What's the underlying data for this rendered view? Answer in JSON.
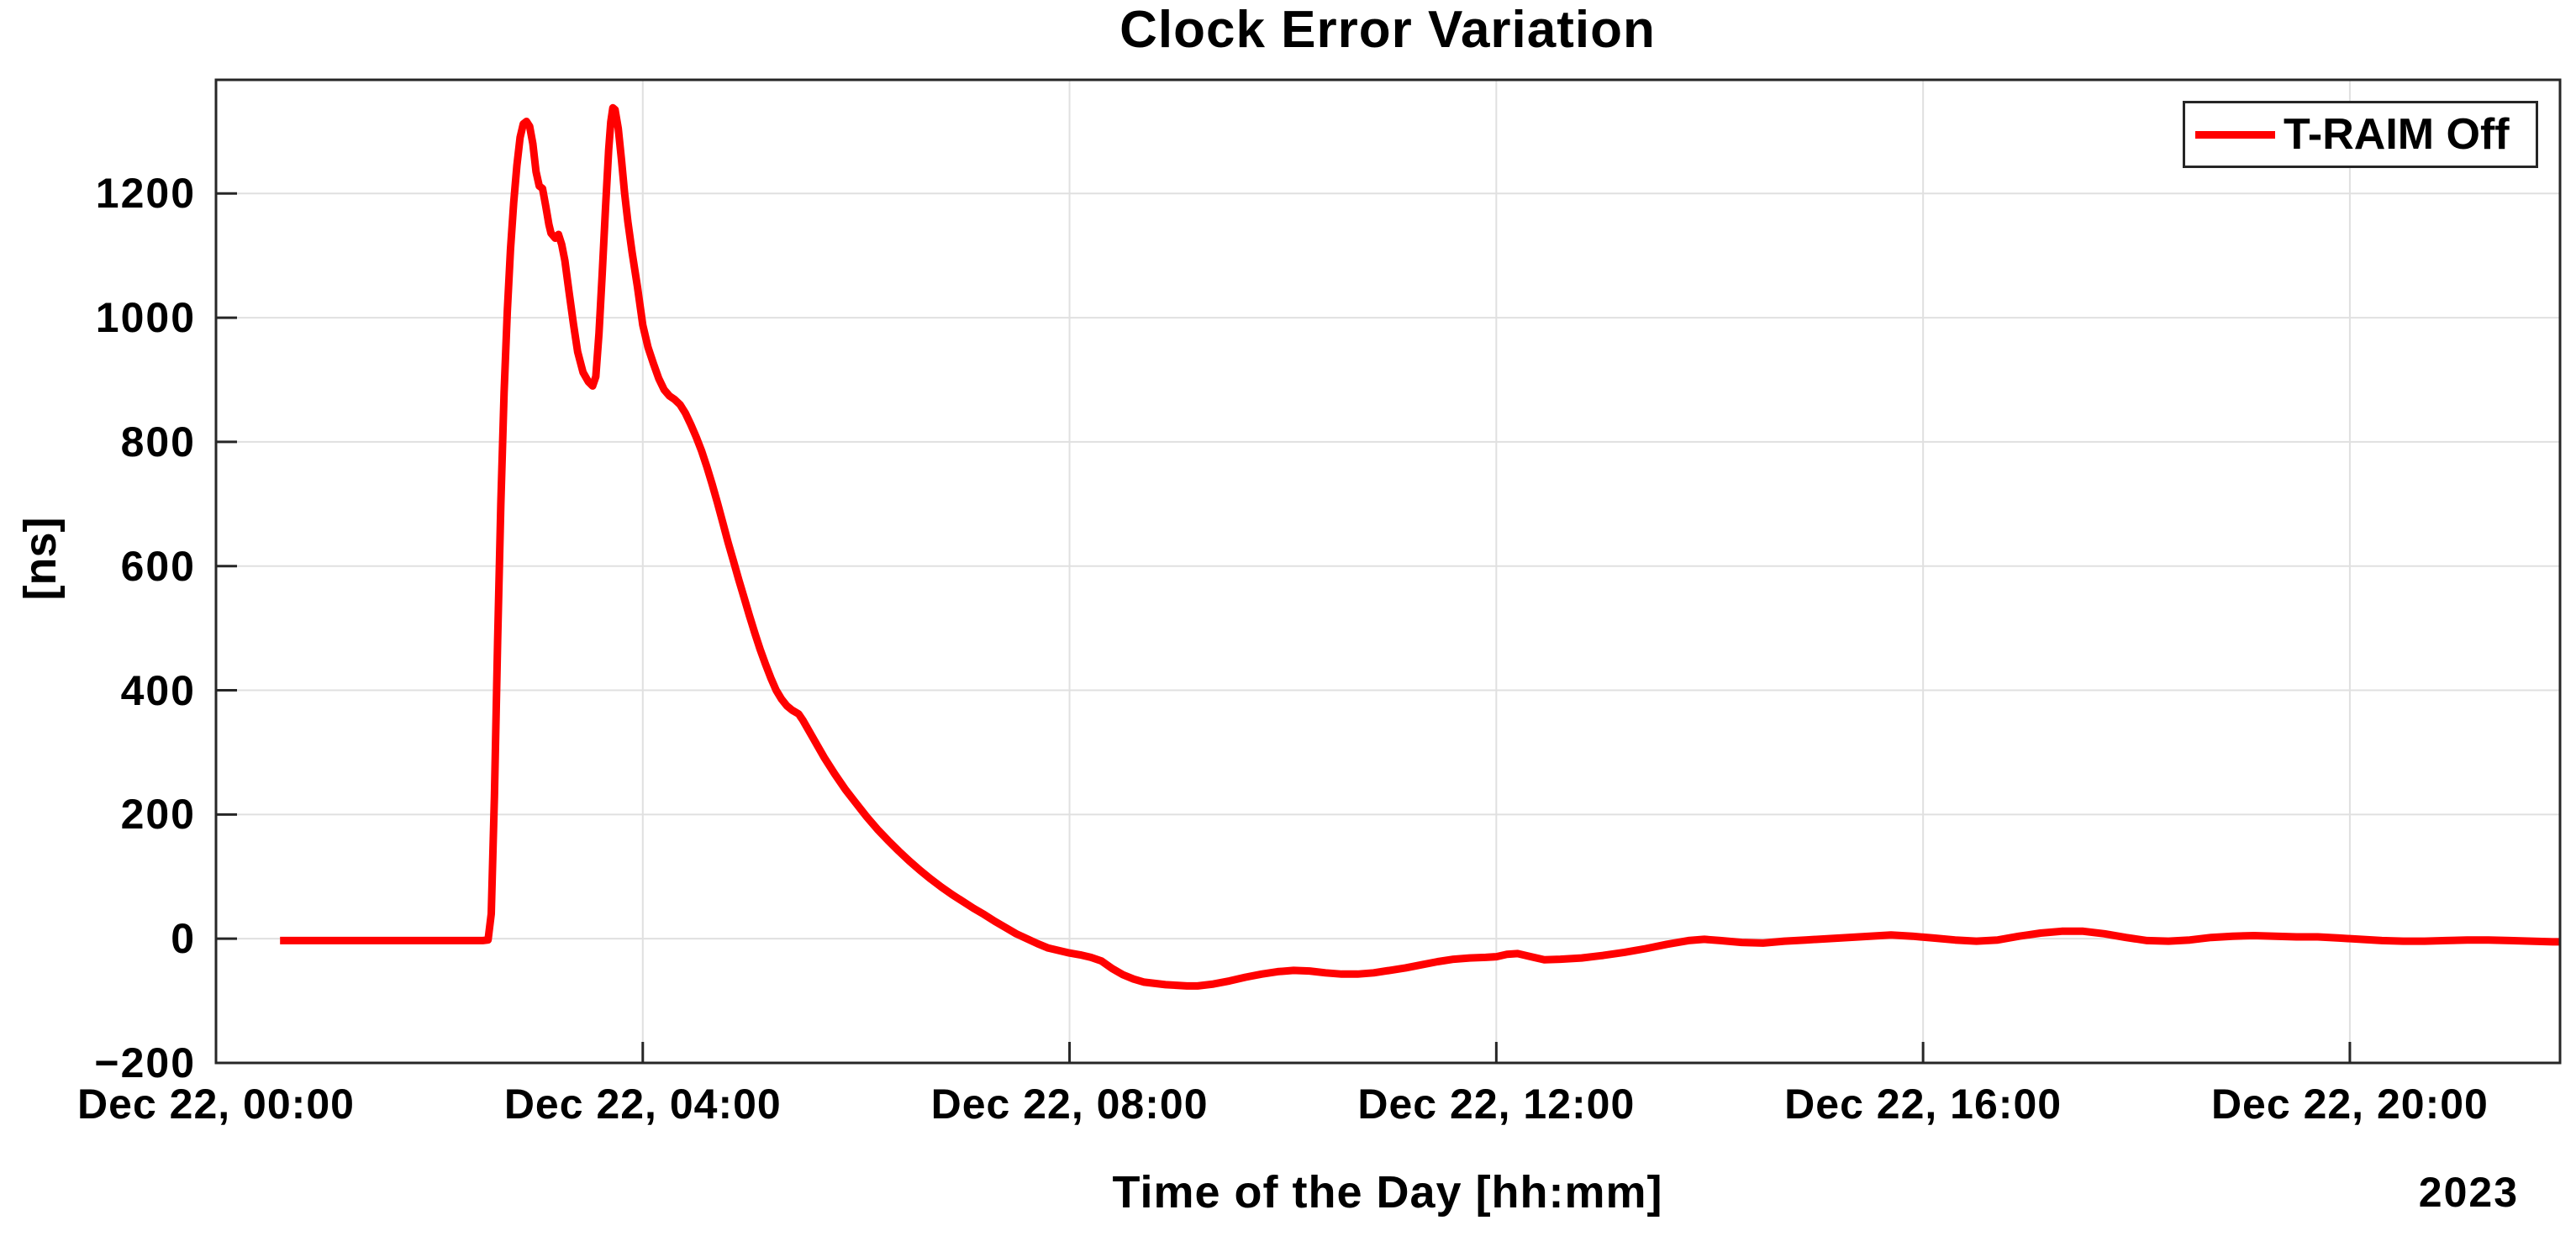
{
  "chart_data": {
    "type": "line",
    "title": "Clock Error Variation",
    "xlabel": "Time of the Day [hh:mm]",
    "ylabel": "[ns]",
    "x_secondary_label": "2023",
    "grid": true,
    "background_color": "#ffffff",
    "axis_color": "#262626",
    "grid_color": "#e0e0e0",
    "xlim_hours": [
      0,
      21.97
    ],
    "ylim": [
      -200,
      1383
    ],
    "x_ticks": [
      {
        "hours": 0,
        "label": "Dec 22, 00:00"
      },
      {
        "hours": 4,
        "label": "Dec 22, 04:00"
      },
      {
        "hours": 8,
        "label": "Dec 22, 08:00"
      },
      {
        "hours": 12,
        "label": "Dec 22, 12:00"
      },
      {
        "hours": 16,
        "label": "Dec 22, 16:00"
      },
      {
        "hours": 20,
        "label": "Dec 22, 20:00"
      }
    ],
    "y_ticks": [
      {
        "value": -200,
        "label": "−200"
      },
      {
        "value": 0,
        "label": "0"
      },
      {
        "value": 200,
        "label": "200"
      },
      {
        "value": 400,
        "label": "400"
      },
      {
        "value": 600,
        "label": "600"
      },
      {
        "value": 800,
        "label": "800"
      },
      {
        "value": 1000,
        "label": "1000"
      },
      {
        "value": 1200,
        "label": "1200"
      }
    ],
    "legend": {
      "position": "top-right",
      "entries": [
        {
          "label": "T-RAIM Off",
          "color": "#FF0000"
        }
      ]
    },
    "series": [
      {
        "name": "T-RAIM Off",
        "color": "#FF0000",
        "line_width": 9,
        "points": [
          [
            0.6,
            -3
          ],
          [
            0.8,
            -3
          ],
          [
            1.0,
            -3
          ],
          [
            1.2,
            -3
          ],
          [
            1.4,
            -3
          ],
          [
            1.6,
            -3
          ],
          [
            1.8,
            -3
          ],
          [
            2.0,
            -3
          ],
          [
            2.2,
            -3
          ],
          [
            2.4,
            -3
          ],
          [
            2.5,
            -3
          ],
          [
            2.55,
            -2
          ],
          [
            2.58,
            40
          ],
          [
            2.61,
            230
          ],
          [
            2.64,
            480
          ],
          [
            2.67,
            700
          ],
          [
            2.7,
            880
          ],
          [
            2.73,
            1010
          ],
          [
            2.76,
            1110
          ],
          [
            2.79,
            1185
          ],
          [
            2.82,
            1245
          ],
          [
            2.85,
            1290
          ],
          [
            2.88,
            1312
          ],
          [
            2.91,
            1316
          ],
          [
            2.94,
            1308
          ],
          [
            2.97,
            1280
          ],
          [
            3.0,
            1235
          ],
          [
            3.03,
            1212
          ],
          [
            3.06,
            1208
          ],
          [
            3.09,
            1180
          ],
          [
            3.12,
            1150
          ],
          [
            3.14,
            1136
          ],
          [
            3.18,
            1128
          ],
          [
            3.21,
            1134
          ],
          [
            3.24,
            1118
          ],
          [
            3.27,
            1092
          ],
          [
            3.31,
            1040
          ],
          [
            3.35,
            990
          ],
          [
            3.39,
            945
          ],
          [
            3.44,
            912
          ],
          [
            3.49,
            897
          ],
          [
            3.53,
            890
          ],
          [
            3.56,
            905
          ],
          [
            3.59,
            975
          ],
          [
            3.62,
            1070
          ],
          [
            3.65,
            1175
          ],
          [
            3.68,
            1270
          ],
          [
            3.7,
            1315
          ],
          [
            3.72,
            1338
          ],
          [
            3.74,
            1335
          ],
          [
            3.77,
            1305
          ],
          [
            3.8,
            1255
          ],
          [
            3.83,
            1200
          ],
          [
            3.86,
            1155
          ],
          [
            3.9,
            1105
          ],
          [
            3.95,
            1050
          ],
          [
            4.0,
            988
          ],
          [
            4.05,
            952
          ],
          [
            4.1,
            926
          ],
          [
            4.15,
            902
          ],
          [
            4.2,
            884
          ],
          [
            4.25,
            874
          ],
          [
            4.3,
            868
          ],
          [
            4.35,
            860
          ],
          [
            4.4,
            846
          ],
          [
            4.45,
            828
          ],
          [
            4.5,
            808
          ],
          [
            4.55,
            786
          ],
          [
            4.6,
            760
          ],
          [
            4.65,
            732
          ],
          [
            4.7,
            702
          ],
          [
            4.75,
            670
          ],
          [
            4.8,
            638
          ],
          [
            4.85,
            608
          ],
          [
            4.9,
            578
          ],
          [
            4.95,
            549
          ],
          [
            5.0,
            520
          ],
          [
            5.05,
            492
          ],
          [
            5.1,
            466
          ],
          [
            5.15,
            442
          ],
          [
            5.2,
            420
          ],
          [
            5.25,
            400
          ],
          [
            5.3,
            386
          ],
          [
            5.35,
            375
          ],
          [
            5.4,
            368
          ],
          [
            5.46,
            362
          ],
          [
            5.5,
            352
          ],
          [
            5.6,
            322
          ],
          [
            5.7,
            292
          ],
          [
            5.8,
            265
          ],
          [
            5.9,
            240
          ],
          [
            6.0,
            218
          ],
          [
            6.1,
            196
          ],
          [
            6.2,
            176
          ],
          [
            6.3,
            158
          ],
          [
            6.4,
            141
          ],
          [
            6.5,
            125
          ],
          [
            6.6,
            110
          ],
          [
            6.7,
            96
          ],
          [
            6.8,
            83
          ],
          [
            6.9,
            71
          ],
          [
            7.0,
            60
          ],
          [
            7.1,
            49
          ],
          [
            7.2,
            39
          ],
          [
            7.3,
            28
          ],
          [
            7.4,
            18
          ],
          [
            7.5,
            8
          ],
          [
            7.6,
            0
          ],
          [
            7.7,
            -8
          ],
          [
            7.8,
            -15
          ],
          [
            7.9,
            -19
          ],
          [
            8.0,
            -23
          ],
          [
            8.1,
            -26
          ],
          [
            8.2,
            -30
          ],
          [
            8.3,
            -36
          ],
          [
            8.4,
            -48
          ],
          [
            8.5,
            -58
          ],
          [
            8.6,
            -65
          ],
          [
            8.7,
            -70
          ],
          [
            8.8,
            -72
          ],
          [
            8.9,
            -74
          ],
          [
            9.0,
            -75
          ],
          [
            9.1,
            -76
          ],
          [
            9.2,
            -76
          ],
          [
            9.35,
            -73
          ],
          [
            9.5,
            -68
          ],
          [
            9.65,
            -62
          ],
          [
            9.8,
            -57
          ],
          [
            9.95,
            -53
          ],
          [
            10.1,
            -51
          ],
          [
            10.25,
            -52
          ],
          [
            10.4,
            -55
          ],
          [
            10.55,
            -57
          ],
          [
            10.7,
            -57
          ],
          [
            10.85,
            -55
          ],
          [
            11.0,
            -51
          ],
          [
            11.15,
            -47
          ],
          [
            11.3,
            -42
          ],
          [
            11.45,
            -37
          ],
          [
            11.6,
            -33
          ],
          [
            11.75,
            -31
          ],
          [
            11.9,
            -30
          ],
          [
            12.0,
            -29
          ],
          [
            12.1,
            -25
          ],
          [
            12.2,
            -24
          ],
          [
            12.3,
            -28
          ],
          [
            12.45,
            -34
          ],
          [
            12.6,
            -33
          ],
          [
            12.8,
            -31
          ],
          [
            13.0,
            -27
          ],
          [
            13.2,
            -22
          ],
          [
            13.4,
            -16
          ],
          [
            13.6,
            -9
          ],
          [
            13.8,
            -3
          ],
          [
            13.95,
            -1
          ],
          [
            14.1,
            -3
          ],
          [
            14.3,
            -6
          ],
          [
            14.5,
            -7
          ],
          [
            14.7,
            -4
          ],
          [
            14.9,
            -2
          ],
          [
            15.1,
            0
          ],
          [
            15.3,
            2
          ],
          [
            15.5,
            4
          ],
          [
            15.7,
            6
          ],
          [
            15.9,
            4
          ],
          [
            16.1,
            1
          ],
          [
            16.3,
            -2
          ],
          [
            16.5,
            -4
          ],
          [
            16.7,
            -2
          ],
          [
            16.9,
            4
          ],
          [
            17.1,
            9
          ],
          [
            17.3,
            12
          ],
          [
            17.5,
            12
          ],
          [
            17.7,
            8
          ],
          [
            17.9,
            2
          ],
          [
            18.1,
            -3
          ],
          [
            18.3,
            -4
          ],
          [
            18.5,
            -2
          ],
          [
            18.7,
            2
          ],
          [
            18.9,
            4
          ],
          [
            19.1,
            5
          ],
          [
            19.3,
            4
          ],
          [
            19.5,
            3
          ],
          [
            19.7,
            3
          ],
          [
            19.9,
            1
          ],
          [
            20.1,
            -1
          ],
          [
            20.3,
            -3
          ],
          [
            20.5,
            -4
          ],
          [
            20.7,
            -4
          ],
          [
            20.9,
            -3
          ],
          [
            21.1,
            -2
          ],
          [
            21.3,
            -2
          ],
          [
            21.5,
            -3
          ],
          [
            21.7,
            -4
          ],
          [
            21.9,
            -5
          ],
          [
            21.97,
            -5
          ]
        ]
      }
    ]
  }
}
